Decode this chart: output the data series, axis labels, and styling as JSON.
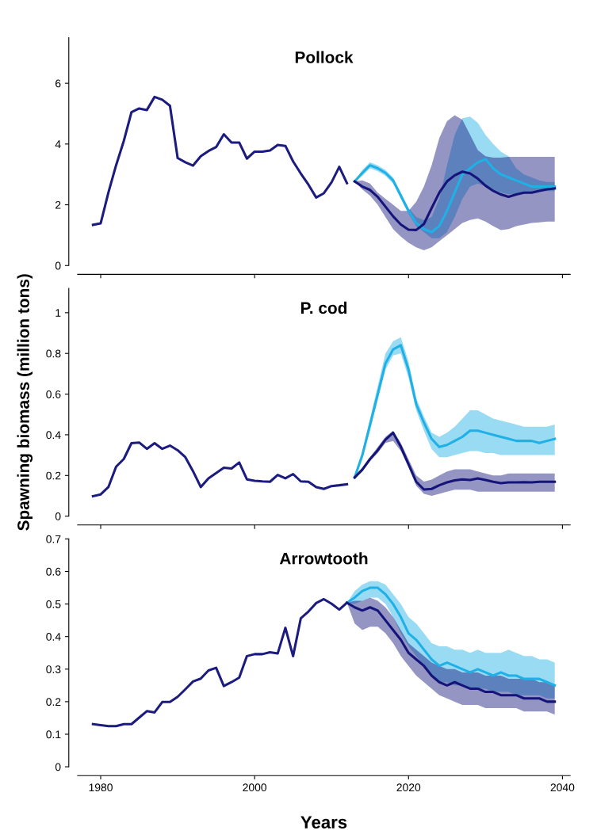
{
  "chart_data": [
    {
      "type": "line",
      "title": "Pollock",
      "xlim": [
        1977,
        2041
      ],
      "xticks": [
        1980,
        2000,
        2020,
        2040
      ],
      "ylim": [
        0,
        7.5
      ],
      "yticks": [
        0,
        2,
        4,
        6
      ],
      "tick_labels": "y",
      "grid": false,
      "line_style": "solid",
      "series": [
        {
          "color": "#1c1c80",
          "x": [
            1979,
            1980,
            1981,
            1982,
            1983,
            1984,
            1985,
            1986,
            1987,
            1988,
            1989,
            1990,
            1991,
            1992,
            1993,
            1994,
            1995,
            1996,
            1997,
            1998,
            1999,
            2000,
            2001,
            2002,
            2003,
            2004,
            2005,
            2006,
            2007,
            2008,
            2009,
            2010,
            2011,
            2012
          ],
          "values": [
            1.34,
            1.39,
            2.4,
            3.3,
            4.1,
            5.05,
            5.17,
            5.12,
            5.55,
            5.46,
            5.26,
            3.54,
            3.4,
            3.29,
            3.6,
            3.77,
            3.9,
            4.32,
            4.05,
            4.05,
            3.52,
            3.75,
            3.75,
            3.79,
            3.97,
            3.94,
            3.43,
            3.03,
            2.66,
            2.24,
            2.38,
            2.74,
            3.25,
            2.71
          ]
        },
        {
          "color": "#1fb0e6",
          "x": [
            2013,
            2014,
            2015,
            2016,
            2017,
            2018,
            2019,
            2020,
            2021,
            2022,
            2023,
            2024,
            2025,
            2026,
            2027,
            2028,
            2029,
            2030,
            2031,
            2032,
            2033,
            2034,
            2035,
            2036,
            2037,
            2038,
            2039
          ],
          "values": [
            2.77,
            3.05,
            3.3,
            3.2,
            3.05,
            2.8,
            2.3,
            1.8,
            1.4,
            1.2,
            1.1,
            1.3,
            1.8,
            2.4,
            3.0,
            3.2,
            3.4,
            3.5,
            3.2,
            3.0,
            2.9,
            2.8,
            2.7,
            2.6,
            2.6,
            2.6,
            2.6
          ],
          "lower": [
            2.77,
            2.95,
            3.2,
            3.1,
            2.95,
            2.7,
            2.2,
            1.7,
            1.3,
            1.1,
            0.9,
            0.9,
            1.1,
            1.6,
            2.2,
            2.6,
            2.7,
            2.6,
            2.5,
            2.4,
            2.35,
            2.35,
            2.4,
            2.4,
            2.45,
            2.45,
            2.45
          ],
          "upper": [
            2.77,
            3.15,
            3.4,
            3.3,
            3.15,
            2.9,
            2.4,
            1.9,
            1.6,
            1.5,
            1.6,
            2.2,
            3.3,
            4.3,
            4.85,
            4.9,
            4.7,
            4.3,
            4.0,
            3.75,
            3.6,
            3.2,
            3.0,
            2.9,
            2.8,
            2.75,
            2.75
          ]
        },
        {
          "color": "#14147a",
          "x": [
            2013,
            2014,
            2015,
            2016,
            2017,
            2018,
            2019,
            2020,
            2021,
            2022,
            2023,
            2024,
            2025,
            2026,
            2027,
            2028,
            2029,
            2030,
            2031,
            2032,
            2033,
            2034,
            2035,
            2036,
            2037,
            2038,
            2039
          ],
          "values": [
            2.77,
            2.6,
            2.49,
            2.26,
            1.94,
            1.62,
            1.35,
            1.18,
            1.17,
            1.37,
            1.89,
            2.4,
            2.77,
            2.97,
            3.09,
            3.03,
            2.86,
            2.63,
            2.46,
            2.34,
            2.26,
            2.34,
            2.4,
            2.4,
            2.46,
            2.51,
            2.54
          ],
          "lower": [
            2.77,
            2.5,
            2.3,
            2.0,
            1.6,
            1.2,
            0.95,
            0.75,
            0.6,
            0.5,
            0.6,
            0.8,
            1.0,
            1.2,
            1.4,
            1.5,
            1.55,
            1.45,
            1.3,
            1.17,
            1.2,
            1.3,
            1.35,
            1.4,
            1.42,
            1.45,
            1.45
          ],
          "upper": [
            2.77,
            2.8,
            2.7,
            2.4,
            2.2,
            2.0,
            1.8,
            1.8,
            2.1,
            2.6,
            3.3,
            4.2,
            4.75,
            4.95,
            4.8,
            4.3,
            3.8,
            3.6,
            3.55,
            3.55,
            3.58,
            3.58,
            3.58,
            3.58,
            3.58,
            3.58,
            3.58
          ]
        }
      ]
    },
    {
      "type": "line",
      "title": "P. cod",
      "ylabel": "Spawning biomass (million tons)",
      "xlim": [
        1977,
        2041
      ],
      "xticks": [
        1980,
        2000,
        2020,
        2040
      ],
      "ylim": [
        0,
        1.12
      ],
      "yticks": [
        0,
        0.2,
        0.4,
        0.6,
        0.8,
        1
      ],
      "tick_labels": "y",
      "grid": false,
      "line_style": "solid",
      "series": [
        {
          "color": "#1c1c80",
          "x": [
            1979,
            1980,
            1981,
            1982,
            1983,
            1984,
            1985,
            1986,
            1987,
            1988,
            1989,
            1990,
            1991,
            1992,
            1993,
            1994,
            1995,
            1996,
            1997,
            1998,
            1999,
            2000,
            2001,
            2002,
            2003,
            2004,
            2005,
            2006,
            2007,
            2008,
            2009,
            2010,
            2011,
            2012
          ],
          "values": [
            0.098,
            0.107,
            0.143,
            0.243,
            0.281,
            0.359,
            0.362,
            0.331,
            0.359,
            0.331,
            0.347,
            0.324,
            0.29,
            0.221,
            0.143,
            0.186,
            0.212,
            0.238,
            0.234,
            0.264,
            0.181,
            0.174,
            0.171,
            0.169,
            0.203,
            0.186,
            0.207,
            0.171,
            0.169,
            0.143,
            0.134,
            0.148,
            0.152,
            0.157
          ]
        },
        {
          "color": "#1fb0e6",
          "x": [
            2013,
            2014,
            2015,
            2016,
            2017,
            2018,
            2019,
            2020,
            2021,
            2022,
            2023,
            2024,
            2025,
            2026,
            2027,
            2028,
            2029,
            2030,
            2031,
            2032,
            2033,
            2034,
            2035,
            2036,
            2037,
            2038,
            2039
          ],
          "values": [
            0.19,
            0.3,
            0.45,
            0.6,
            0.75,
            0.82,
            0.84,
            0.72,
            0.55,
            0.46,
            0.38,
            0.34,
            0.35,
            0.37,
            0.39,
            0.42,
            0.42,
            0.41,
            0.4,
            0.39,
            0.38,
            0.37,
            0.37,
            0.37,
            0.36,
            0.37,
            0.38
          ],
          "lower": [
            0.19,
            0.28,
            0.42,
            0.57,
            0.72,
            0.79,
            0.8,
            0.68,
            0.52,
            0.42,
            0.33,
            0.29,
            0.29,
            0.3,
            0.31,
            0.32,
            0.32,
            0.31,
            0.31,
            0.3,
            0.3,
            0.3,
            0.3,
            0.3,
            0.3,
            0.3,
            0.3
          ],
          "upper": [
            0.19,
            0.32,
            0.48,
            0.64,
            0.8,
            0.86,
            0.88,
            0.76,
            0.58,
            0.49,
            0.41,
            0.39,
            0.41,
            0.44,
            0.48,
            0.52,
            0.52,
            0.5,
            0.48,
            0.47,
            0.46,
            0.45,
            0.44,
            0.44,
            0.44,
            0.44,
            0.45
          ]
        },
        {
          "color": "#14147a",
          "x": [
            2013,
            2014,
            2015,
            2016,
            2017,
            2018,
            2019,
            2020,
            2021,
            2022,
            2023,
            2024,
            2025,
            2026,
            2027,
            2028,
            2029,
            2030,
            2031,
            2032,
            2033,
            2034,
            2035,
            2036,
            2037,
            2038,
            2039
          ],
          "values": [
            0.19,
            0.229,
            0.281,
            0.324,
            0.376,
            0.41,
            0.341,
            0.255,
            0.169,
            0.131,
            0.134,
            0.152,
            0.166,
            0.176,
            0.181,
            0.178,
            0.186,
            0.178,
            0.169,
            0.162,
            0.166,
            0.166,
            0.167,
            0.166,
            0.169,
            0.169,
            0.169
          ],
          "lower": [
            0.19,
            0.22,
            0.27,
            0.31,
            0.36,
            0.37,
            0.32,
            0.24,
            0.15,
            0.11,
            0.1,
            0.11,
            0.12,
            0.13,
            0.13,
            0.13,
            0.12,
            0.12,
            0.12,
            0.12,
            0.12,
            0.12,
            0.12,
            0.12,
            0.12,
            0.12,
            0.12
          ],
          "upper": [
            0.19,
            0.24,
            0.29,
            0.34,
            0.39,
            0.42,
            0.36,
            0.28,
            0.2,
            0.17,
            0.18,
            0.2,
            0.22,
            0.23,
            0.23,
            0.23,
            0.22,
            0.21,
            0.2,
            0.2,
            0.21,
            0.21,
            0.21,
            0.21,
            0.21,
            0.21,
            0.21
          ]
        }
      ]
    },
    {
      "type": "line",
      "title": "Arrowtooth",
      "xlabel": "Years",
      "xlim": [
        1977,
        2041
      ],
      "xticks": [
        1980,
        2000,
        2020,
        2040
      ],
      "ylim": [
        0,
        0.7
      ],
      "yticks": [
        0,
        0.1,
        0.2,
        0.3,
        0.4,
        0.5,
        0.6,
        0.7
      ],
      "grid": false,
      "line_style": "solid",
      "series": [
        {
          "color": "#1c1c80",
          "x": [
            1979,
            1980,
            1981,
            1982,
            1983,
            1984,
            1985,
            1986,
            1987,
            1988,
            1989,
            1990,
            1991,
            1992,
            1993,
            1994,
            1995,
            1996,
            1997,
            1998,
            1999,
            2000,
            2001,
            2002,
            2003,
            2004,
            2005,
            2006,
            2007,
            2008,
            2009,
            2010,
            2011,
            2012
          ],
          "values": [
            0.131,
            0.128,
            0.125,
            0.125,
            0.131,
            0.131,
            0.151,
            0.171,
            0.167,
            0.199,
            0.199,
            0.215,
            0.238,
            0.262,
            0.271,
            0.296,
            0.304,
            0.248,
            0.26,
            0.274,
            0.34,
            0.346,
            0.346,
            0.352,
            0.348,
            0.427,
            0.34,
            0.456,
            0.477,
            0.503,
            0.515,
            0.501,
            0.483,
            0.504
          ]
        },
        {
          "color": "#1fb0e6",
          "x": [
            2012,
            2013,
            2014,
            2015,
            2016,
            2017,
            2018,
            2019,
            2020,
            2021,
            2022,
            2023,
            2024,
            2025,
            2026,
            2027,
            2028,
            2029,
            2030,
            2031,
            2032,
            2033,
            2034,
            2035,
            2036,
            2037,
            2038,
            2039
          ],
          "values": [
            0.504,
            0.52,
            0.54,
            0.55,
            0.55,
            0.53,
            0.5,
            0.46,
            0.41,
            0.39,
            0.36,
            0.33,
            0.31,
            0.32,
            0.31,
            0.3,
            0.29,
            0.3,
            0.29,
            0.28,
            0.29,
            0.28,
            0.28,
            0.27,
            0.27,
            0.27,
            0.26,
            0.25
          ],
          "lower": [
            0.504,
            0.5,
            0.51,
            0.52,
            0.52,
            0.5,
            0.46,
            0.41,
            0.37,
            0.34,
            0.31,
            0.28,
            0.26,
            0.26,
            0.25,
            0.25,
            0.24,
            0.24,
            0.24,
            0.23,
            0.23,
            0.23,
            0.22,
            0.22,
            0.22,
            0.22,
            0.21,
            0.21
          ],
          "upper": [
            0.504,
            0.54,
            0.56,
            0.57,
            0.57,
            0.56,
            0.53,
            0.5,
            0.46,
            0.44,
            0.41,
            0.38,
            0.37,
            0.37,
            0.36,
            0.36,
            0.35,
            0.36,
            0.35,
            0.35,
            0.35,
            0.36,
            0.35,
            0.34,
            0.34,
            0.33,
            0.33,
            0.32
          ]
        },
        {
          "color": "#14147a",
          "x": [
            2012,
            2013,
            2014,
            2015,
            2016,
            2017,
            2018,
            2019,
            2020,
            2021,
            2022,
            2023,
            2024,
            2025,
            2026,
            2027,
            2028,
            2029,
            2030,
            2031,
            2032,
            2033,
            2034,
            2035,
            2036,
            2037,
            2038,
            2039
          ],
          "values": [
            0.504,
            0.49,
            0.48,
            0.49,
            0.48,
            0.45,
            0.42,
            0.39,
            0.35,
            0.33,
            0.31,
            0.28,
            0.26,
            0.25,
            0.26,
            0.25,
            0.24,
            0.24,
            0.23,
            0.23,
            0.22,
            0.22,
            0.22,
            0.21,
            0.21,
            0.21,
            0.2,
            0.2
          ],
          "lower": [
            0.504,
            0.44,
            0.42,
            0.43,
            0.43,
            0.41,
            0.38,
            0.34,
            0.31,
            0.28,
            0.26,
            0.24,
            0.22,
            0.21,
            0.2,
            0.19,
            0.19,
            0.19,
            0.18,
            0.18,
            0.18,
            0.18,
            0.18,
            0.17,
            0.17,
            0.17,
            0.17,
            0.16
          ],
          "upper": [
            0.504,
            0.51,
            0.51,
            0.52,
            0.51,
            0.49,
            0.46,
            0.42,
            0.38,
            0.36,
            0.34,
            0.32,
            0.31,
            0.3,
            0.3,
            0.29,
            0.29,
            0.29,
            0.28,
            0.28,
            0.28,
            0.27,
            0.27,
            0.27,
            0.27,
            0.26,
            0.26,
            0.25
          ]
        }
      ]
    }
  ]
}
